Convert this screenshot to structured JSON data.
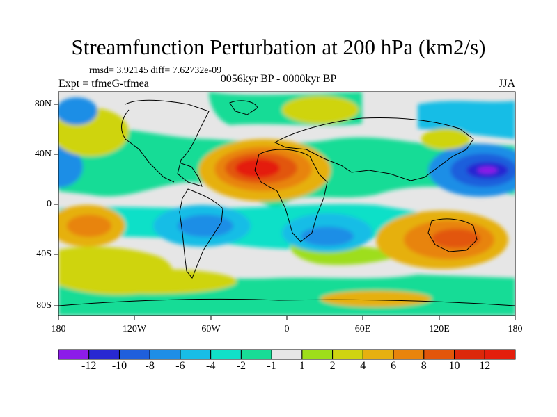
{
  "title": "Streamfunction Perturbation at 200 hPa (km2/s)",
  "stats": "rmsd= 3.92145 diff= 7.62732e-09",
  "experiment": "Expt = tfmeG-tfmea",
  "period": "0056kyr BP - 0000kyr BP",
  "season": "JJA",
  "lat_labels": [
    "80N",
    "40N",
    "0",
    "40S",
    "80S"
  ],
  "lon_labels": [
    "180",
    "120W",
    "60W",
    "0",
    "60E",
    "120E",
    "180"
  ],
  "colorbar": {
    "labels": [
      "-12",
      "-10",
      "-8",
      "-6",
      "-4",
      "-2",
      "-1",
      "1",
      "2",
      "4",
      "6",
      "8",
      "10",
      "12"
    ],
    "colors": [
      "#8c1ce8",
      "#2828d2",
      "#1f5fdc",
      "#1e8ee6",
      "#18bde6",
      "#10e0c8",
      "#18dc96",
      "#e6e6e6",
      "#9ede1a",
      "#cfd410",
      "#e6b010",
      "#e8840c",
      "#e2560a",
      "#dc280a",
      "#e41e0c"
    ]
  },
  "map_data": {
    "variable": "streamfunction perturbation",
    "level": "200 hPa",
    "units": "km2/s",
    "features": [
      {
        "name": "North Africa / subtropical Atlantic high",
        "lon": -10,
        "lat": 30,
        "value": 12
      },
      {
        "name": "Northwest Pacific low",
        "lon": 150,
        "lat": 28,
        "value": -10
      },
      {
        "name": "Australian high",
        "lon": 125,
        "lat": -25,
        "value": 9
      },
      {
        "name": "Central South Pacific high",
        "lon": -145,
        "lat": -20,
        "value": 8
      },
      {
        "name": "South Atlantic low",
        "lon": -40,
        "lat": -18,
        "value": -6
      },
      {
        "name": "Southern Africa low",
        "lon": 20,
        "lat": -25,
        "value": -6
      },
      {
        "name": "North Pacific high",
        "lon": -170,
        "lat": 50,
        "value": 5
      },
      {
        "name": "Eurasia high",
        "lon": 55,
        "lat": 72,
        "value": 3
      },
      {
        "name": "Central Pacific low",
        "lon": 175,
        "lat": 30,
        "value": -8
      }
    ]
  }
}
